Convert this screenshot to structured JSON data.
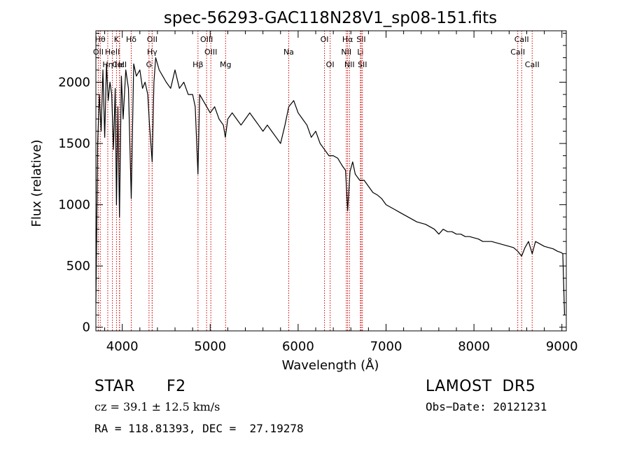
{
  "chart_data": {
    "type": "line",
    "title": "spec-56293-GAC118N28V1_sp08-151.fits",
    "xlabel": "Wavelength (Å)",
    "ylabel": "Flux (relative)",
    "xlim": [
      3700,
      9050
    ],
    "ylim": [
      -30,
      2420
    ],
    "x_ticks": [
      4000,
      5000,
      6000,
      7000,
      8000,
      9000
    ],
    "y_ticks": [
      0,
      500,
      1000,
      1500,
      2000
    ],
    "grid": false,
    "series": [
      {
        "x": [
          3700,
          3720,
          3740,
          3760,
          3780,
          3800,
          3820,
          3840,
          3860,
          3880,
          3900,
          3920,
          3934,
          3950,
          3968,
          3990,
          4010,
          4040,
          4070,
          4102,
          4130,
          4160,
          4200,
          4230,
          4260,
          4290,
          4310,
          4340,
          4360,
          4380,
          4420,
          4460,
          4500,
          4550,
          4600,
          4650,
          4700,
          4750,
          4800,
          4830,
          4861,
          4880,
          4920,
          4960,
          5000,
          5050,
          5100,
          5150,
          5172,
          5200,
          5250,
          5300,
          5350,
          5400,
          5450,
          5500,
          5550,
          5600,
          5650,
          5700,
          5750,
          5800,
          5850,
          5893,
          5950,
          6000,
          6050,
          6100,
          6150,
          6200,
          6250,
          6300,
          6350,
          6400,
          6450,
          6500,
          6540,
          6563,
          6590,
          6620,
          6650,
          6700,
          6750,
          6800,
          6850,
          6900,
          6950,
          7000,
          7050,
          7100,
          7150,
          7200,
          7250,
          7300,
          7350,
          7400,
          7450,
          7500,
          7550,
          7600,
          7650,
          7700,
          7750,
          7800,
          7850,
          7900,
          7950,
          8000,
          8050,
          8100,
          8150,
          8200,
          8250,
          8300,
          8350,
          8400,
          8450,
          8498,
          8542,
          8580,
          8620,
          8662,
          8700,
          8750,
          8800,
          8850,
          8900,
          8950,
          8990,
          9010,
          9030
        ],
        "y": [
          200,
          1500,
          1900,
          1600,
          2100,
          1550,
          2150,
          1850,
          2000,
          1900,
          1450,
          1950,
          1000,
          1800,
          900,
          2050,
          1700,
          2100,
          1950,
          1050,
          2150,
          2050,
          2100,
          1950,
          2000,
          1900,
          1650,
          1350,
          2000,
          2200,
          2100,
          2050,
          2000,
          1950,
          2100,
          1950,
          2000,
          1900,
          1900,
          1800,
          1250,
          1900,
          1850,
          1800,
          1750,
          1800,
          1700,
          1650,
          1550,
          1700,
          1750,
          1700,
          1650,
          1700,
          1750,
          1700,
          1650,
          1600,
          1650,
          1600,
          1550,
          1500,
          1650,
          1800,
          1850,
          1750,
          1700,
          1650,
          1550,
          1600,
          1500,
          1450,
          1400,
          1400,
          1380,
          1320,
          1280,
          950,
          1270,
          1350,
          1250,
          1200,
          1200,
          1150,
          1100,
          1080,
          1050,
          1000,
          980,
          960,
          940,
          920,
          900,
          880,
          860,
          850,
          840,
          820,
          800,
          760,
          800,
          780,
          780,
          760,
          760,
          740,
          740,
          730,
          720,
          700,
          700,
          700,
          690,
          680,
          670,
          660,
          650,
          620,
          580,
          650,
          700,
          600,
          700,
          680,
          660,
          650,
          640,
          620,
          610,
          600,
          100
        ]
      }
    ],
    "lines": [
      {
        "label": "Hθ",
        "x": 3750,
        "row": 0
      },
      {
        "label": "K",
        "x": 3934,
        "row": 0
      },
      {
        "label": "Hδ",
        "x": 4102,
        "row": 0
      },
      {
        "label": "OII",
        "x": 4340,
        "row": 0
      },
      {
        "label": "OIII",
        "x": 4959,
        "row": 0
      },
      {
        "label": "OI",
        "x": 6300,
        "row": 0
      },
      {
        "label": "Hα",
        "x": 6563,
        "row": 0
      },
      {
        "label": "SII",
        "x": 6717,
        "row": 0
      },
      {
        "label": "CaII",
        "x": 8542,
        "row": 0
      },
      {
        "label": "OII",
        "x": 3727,
        "row": 1
      },
      {
        "label": "HeII",
        "x": 3888,
        "row": 1
      },
      {
        "label": "Hγ",
        "x": 4340,
        "row": 1
      },
      {
        "label": "OIII",
        "x": 5007,
        "row": 1
      },
      {
        "label": "Na",
        "x": 5893,
        "row": 1
      },
      {
        "label": "NII",
        "x": 6548,
        "row": 1
      },
      {
        "label": "Li",
        "x": 6708,
        "row": 1
      },
      {
        "label": "CaII",
        "x": 8498,
        "row": 1
      },
      {
        "label": "CaII",
        "x": 3968,
        "row": 2
      },
      {
        "label": "Hε",
        "x": 3970,
        "row": 2
      },
      {
        "label": "Hη",
        "x": 3835,
        "row": 2
      },
      {
        "label": "G",
        "x": 4304,
        "row": 2
      },
      {
        "label": "Hβ",
        "x": 4861,
        "row": 2
      },
      {
        "label": "Mg",
        "x": 5175,
        "row": 2
      },
      {
        "label": "OI",
        "x": 6364,
        "row": 2
      },
      {
        "label": "NII",
        "x": 6584,
        "row": 2
      },
      {
        "label": "SII",
        "x": 6731,
        "row": 2
      },
      {
        "label": "CaII",
        "x": 8662,
        "row": 2
      }
    ],
    "line_color": "#cc0000"
  },
  "info": {
    "class_label": "STAR",
    "subclass": "F2",
    "survey": "LAMOST  DR5",
    "redshift": "cz = 39.1 ± 12.5 km/s",
    "obs_date": "Obs−Date: 20121231",
    "coords": "RA = 118.81393, DEC =  27.19278"
  }
}
